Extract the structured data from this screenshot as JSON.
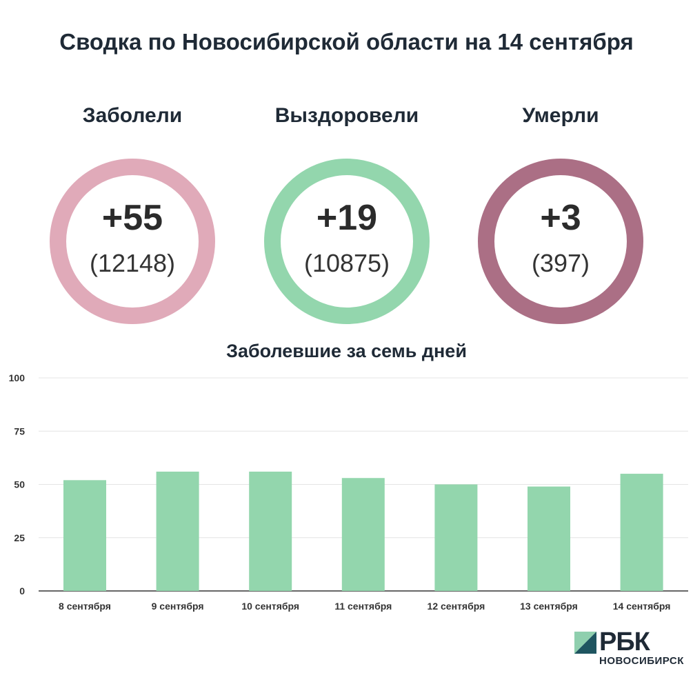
{
  "header": {
    "title": "Сводка по Новосибирской области на 14 сентября"
  },
  "stats": [
    {
      "label": "Заболели",
      "delta": "+55",
      "total": "(12148)",
      "color": "#e0aab9"
    },
    {
      "label": "Выздоровели",
      "delta": "+19",
      "total": "(10875)",
      "color": "#93d6ad"
    },
    {
      "label": "Умерли",
      "delta": "+3",
      "total": "(397)",
      "color": "#ab6f85"
    }
  ],
  "chart_data": {
    "type": "bar",
    "title": "Заболевшие за семь дней",
    "categories": [
      "8 сентября",
      "9 сентября",
      "10 сентября",
      "11 сентября",
      "12 сентября",
      "13 сентября",
      "14 сентября"
    ],
    "values": [
      52,
      56,
      56,
      53,
      50,
      49,
      55
    ],
    "ylim": [
      0,
      100
    ],
    "yticks": [
      0,
      25,
      50,
      75,
      100
    ],
    "grid": true,
    "bar_color": "#93d6ad"
  },
  "logo": {
    "brand": "РБК",
    "city": "НОВОСИБИРСК",
    "mark_dark": "#1f5560",
    "mark_light": "#8fcfae"
  }
}
